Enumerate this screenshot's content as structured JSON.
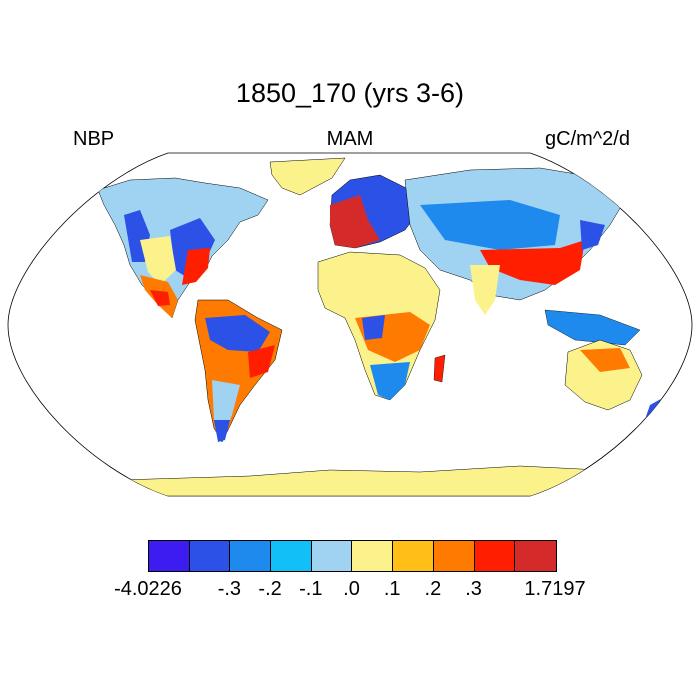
{
  "title": "1850_170 (yrs 3-6)",
  "subtitle_left": "NBP",
  "subtitle_center": "MAM",
  "subtitle_right": "gC/m^2/d",
  "colorbar": {
    "colors": [
      "#3c1cf0",
      "#2c51e6",
      "#1f8aee",
      "#13bff7",
      "#9fd3f1",
      "#fbf28c",
      "#ffbf17",
      "#ff7a00",
      "#ff1f00",
      "#d52a2a"
    ],
    "labels": [
      "-4.0226",
      "-.3",
      "-.2",
      "-.1",
      ".0",
      ".1",
      ".2",
      ".3",
      "1.7197"
    ]
  },
  "map": {
    "projection": "Robinson",
    "ocean_color": "#ffffff",
    "antarctica_color": "#fbf28c",
    "greenland_color": "#fbf28c"
  }
}
